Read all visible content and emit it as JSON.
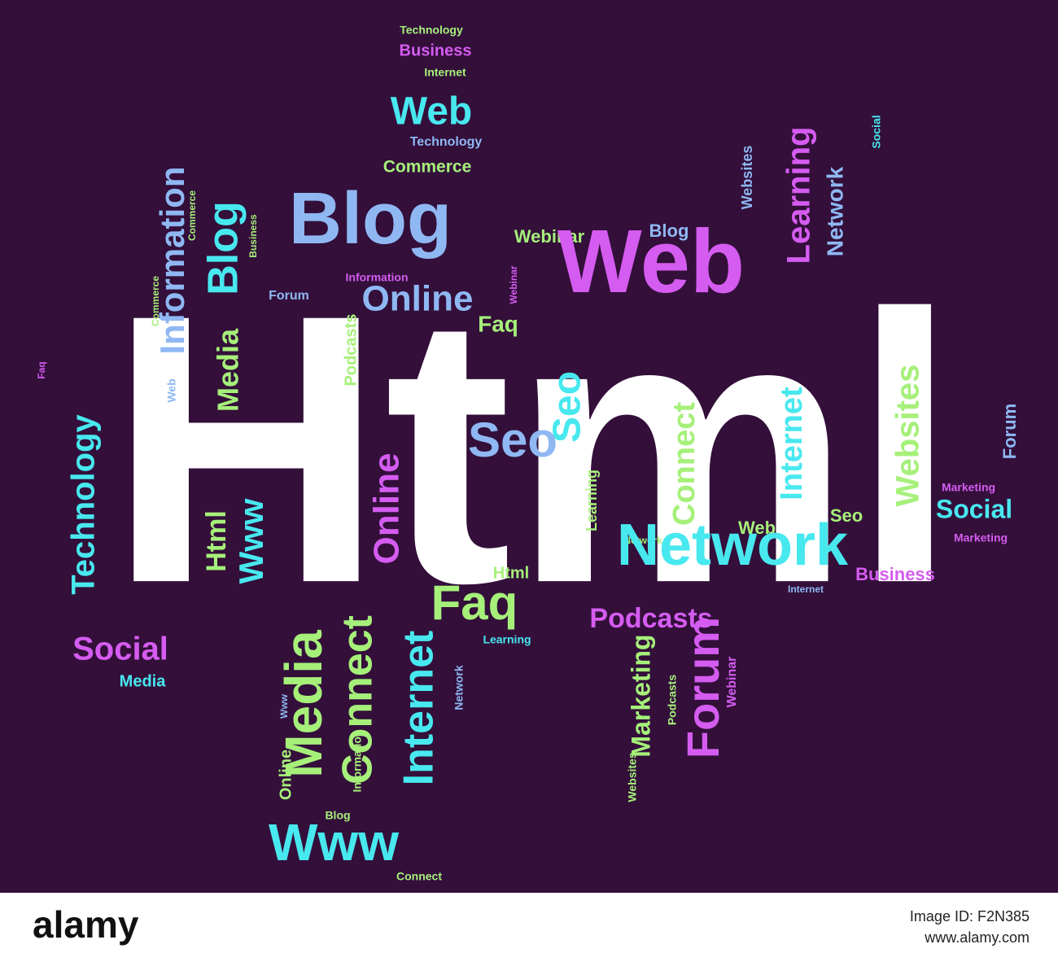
{
  "cloud": {
    "words": [
      "Html",
      "Technology",
      "Business",
      "Internet",
      "Web",
      "Technology",
      "Commerce",
      "Blog",
      "Webinar",
      "Blog",
      "Web",
      "Information",
      "Forum",
      "Online",
      "Faq",
      "Information",
      "Commerce",
      "Blog",
      "Business",
      "Commerce",
      "Media",
      "Web",
      "Faq",
      "Technology",
      "Podcasts",
      "Webinar",
      "Seo",
      "Seo",
      "Online",
      "Learning",
      "Connect",
      "Internet",
      "Websites",
      "Websites",
      "Learning",
      "Network",
      "Social",
      "Forum",
      "Marketing",
      "Social",
      "Marketing",
      "Seo",
      "Web",
      "Network",
      "Network",
      "Internet",
      "Business",
      "Html",
      "Html",
      "Www",
      "Faq",
      "Learning",
      "Podcasts",
      "Social",
      "Media",
      "Media",
      "Connect",
      "Internet",
      "Network",
      "Www",
      "Online",
      "Information",
      "Blog",
      "Www",
      "Connect",
      "Marketing",
      "Podcasts",
      "Forum",
      "Webinar",
      "Websites"
    ]
  },
  "footer": {
    "logo": "alamy",
    "image_id": "Image ID: F2N385",
    "site": "www.alamy.com"
  }
}
